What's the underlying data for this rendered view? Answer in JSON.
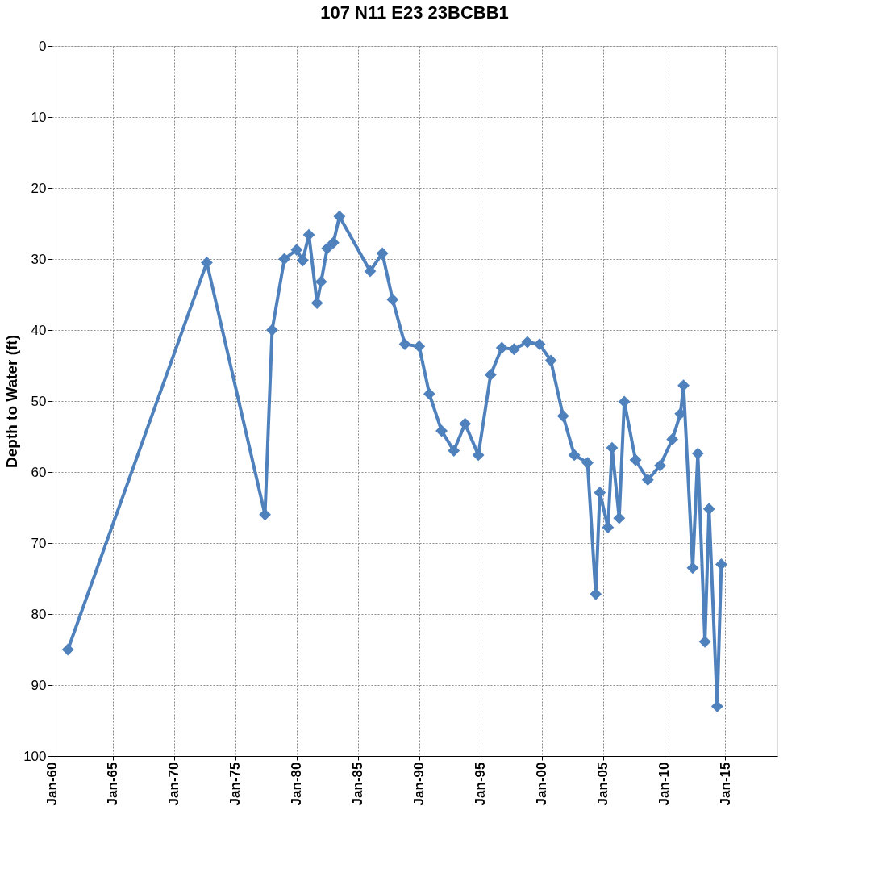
{
  "chart_data": {
    "type": "line",
    "title": "107  N11 E23 23BCBB1",
    "ylabel": "Depth to Water (ft)",
    "x": [
      "1961-05",
      "1972-09",
      "1977-06",
      "1978-01",
      "1979-01",
      "1980-01",
      "1980-07",
      "1981-01",
      "1981-09",
      "1982-01",
      "1982-07",
      "1983-01",
      "1983-07",
      "1986-01",
      "1987-01",
      "1987-11",
      "1988-11",
      "1990-01",
      "1990-11",
      "1991-11",
      "1992-11",
      "1993-10",
      "1994-11",
      "1995-11",
      "1996-10",
      "1997-10",
      "1998-11",
      "1999-11",
      "2000-10",
      "2001-10",
      "2002-09",
      "2003-10",
      "2004-06",
      "2004-10",
      "2005-06",
      "2005-10",
      "2006-05",
      "2006-10",
      "2007-09",
      "2008-09",
      "2009-09",
      "2010-09",
      "2011-05",
      "2011-08",
      "2012-05",
      "2012-10",
      "2013-05",
      "2013-09",
      "2014-05",
      "2014-09"
    ],
    "series": [
      {
        "color": "#4f81bd",
        "values": [
          85,
          30.5,
          66,
          40,
          30,
          28.7,
          30.2,
          26.6,
          36.2,
          33.2,
          28.5,
          27.7,
          24,
          31.7,
          29.2,
          35.7,
          42,
          42.3,
          49,
          54.2,
          57,
          53.2,
          57.6,
          46.3,
          42.5,
          42.7,
          41.7,
          42,
          44.3,
          52.1,
          57.6,
          58.7,
          77.2,
          62.9,
          67.8,
          56.6,
          66.5,
          50.1,
          58.3,
          61.1,
          59.1,
          55.4,
          51.8,
          47.8,
          73.5,
          57.4,
          83.9,
          65.2,
          93,
          73
        ]
      }
    ],
    "xlim": [
      "1960-01-01",
      "2019-04-01"
    ],
    "xticks": [
      {
        "value": "1960-01-01",
        "label": "Jan-60"
      },
      {
        "value": "1965-01-01",
        "label": "Jan-65"
      },
      {
        "value": "1970-01-01",
        "label": "Jan-70"
      },
      {
        "value": "1975-01-01",
        "label": "Jan-75"
      },
      {
        "value": "1980-01-01",
        "label": "Jan-80"
      },
      {
        "value": "1985-01-01",
        "label": "Jan-85"
      },
      {
        "value": "1990-01-01",
        "label": "Jan-90"
      },
      {
        "value": "1995-01-01",
        "label": "Jan-95"
      },
      {
        "value": "2000-01-01",
        "label": "Jan-00"
      },
      {
        "value": "2005-01-01",
        "label": "Jan-05"
      },
      {
        "value": "2010-01-01",
        "label": "Jan-10"
      },
      {
        "value": "2015-01-01",
        "label": "Jan-15"
      }
    ],
    "ylim": [
      100,
      0
    ],
    "yticks": [
      0,
      10,
      20,
      30,
      40,
      50,
      60,
      70,
      80,
      90,
      100
    ],
    "grid": true,
    "marker": "diamond",
    "line_style": "solid"
  }
}
